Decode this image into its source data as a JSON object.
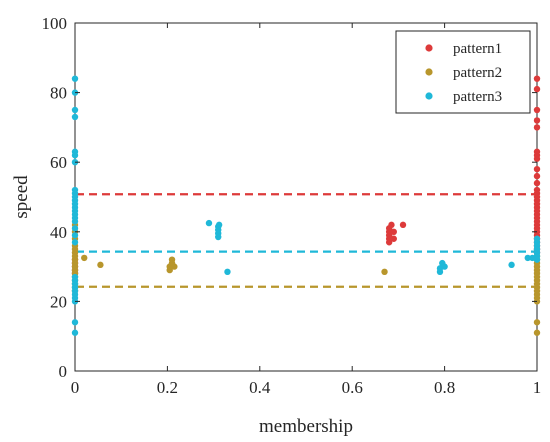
{
  "chart_data": {
    "type": "scatter",
    "xlabel": "membership",
    "ylabel": "speed",
    "xlim": [
      0,
      1
    ],
    "ylim": [
      0,
      100
    ],
    "xticks": [
      0,
      0.2,
      0.4,
      0.6,
      0.8,
      1
    ],
    "xtick_labels": [
      "0",
      "0.2",
      "0.4",
      "0.6",
      "0.8",
      "1"
    ],
    "yticks": [
      0,
      20,
      40,
      60,
      80,
      100
    ],
    "ytick_labels": [
      "0",
      "20",
      "40",
      "60",
      "80",
      "100"
    ],
    "grid": false,
    "legend_position": "top-right",
    "series": [
      {
        "name": "pattern1",
        "color": "#dd3a3a",
        "threshold": 50.8,
        "points": [
          [
            0,
            29
          ],
          [
            0,
            30
          ],
          [
            0,
            31
          ],
          [
            0,
            32
          ],
          [
            0,
            28
          ],
          [
            0.68,
            37
          ],
          [
            0.68,
            38
          ],
          [
            0.68,
            39
          ],
          [
            0.68,
            40
          ],
          [
            0.68,
            41
          ],
          [
            0.685,
            42
          ],
          [
            0.69,
            38
          ],
          [
            0.69,
            40
          ],
          [
            0.71,
            42
          ],
          [
            1,
            84
          ],
          [
            1,
            81
          ],
          [
            1,
            75
          ],
          [
            1,
            72
          ],
          [
            1,
            70
          ],
          [
            1,
            63
          ],
          [
            1,
            62
          ],
          [
            1,
            61
          ],
          [
            1,
            58
          ],
          [
            1,
            56
          ],
          [
            1,
            54
          ],
          [
            1,
            52
          ],
          [
            1,
            51
          ],
          [
            1,
            50
          ],
          [
            1,
            49
          ],
          [
            1,
            48
          ],
          [
            1,
            47
          ],
          [
            1,
            46
          ],
          [
            1,
            45
          ],
          [
            1,
            44
          ],
          [
            1,
            43
          ],
          [
            1,
            42
          ],
          [
            1,
            41
          ],
          [
            1,
            40
          ],
          [
            1,
            39
          ],
          [
            1,
            38
          ],
          [
            1,
            37
          ],
          [
            1,
            36
          ],
          [
            1,
            35
          ],
          [
            1,
            34
          ]
        ]
      },
      {
        "name": "pattern2",
        "color": "#b8962c",
        "threshold": 24.2,
        "points": [
          [
            0,
            42
          ],
          [
            0,
            40
          ],
          [
            0,
            38
          ],
          [
            0,
            36
          ],
          [
            0,
            35
          ],
          [
            0,
            34
          ],
          [
            0,
            33
          ],
          [
            0,
            32
          ],
          [
            0,
            31
          ],
          [
            0,
            30
          ],
          [
            0,
            29
          ],
          [
            0,
            28
          ],
          [
            0,
            27
          ],
          [
            0,
            26
          ],
          [
            0,
            25
          ],
          [
            0,
            24
          ],
          [
            0,
            23
          ],
          [
            0.02,
            32.5
          ],
          [
            0.055,
            30.5
          ],
          [
            0.205,
            29
          ],
          [
            0.205,
            30
          ],
          [
            0.21,
            31
          ],
          [
            0.21,
            32
          ],
          [
            0.215,
            30
          ],
          [
            0.67,
            28.5
          ],
          [
            1,
            33
          ],
          [
            1,
            32
          ],
          [
            1,
            31
          ],
          [
            1,
            30
          ],
          [
            1,
            29
          ],
          [
            1,
            28
          ],
          [
            1,
            27
          ],
          [
            1,
            26
          ],
          [
            1,
            25
          ],
          [
            1,
            24
          ],
          [
            1,
            23
          ],
          [
            1,
            22
          ],
          [
            1,
            21
          ],
          [
            1,
            20
          ],
          [
            1,
            14
          ],
          [
            1,
            11
          ]
        ]
      },
      {
        "name": "pattern3",
        "color": "#1fb8d8",
        "threshold": 34.3,
        "points": [
          [
            0,
            84
          ],
          [
            0,
            80
          ],
          [
            0,
            75
          ],
          [
            0,
            73
          ],
          [
            0,
            63
          ],
          [
            0,
            62
          ],
          [
            0,
            60
          ],
          [
            0,
            52
          ],
          [
            0,
            51
          ],
          [
            0,
            50
          ],
          [
            0,
            49
          ],
          [
            0,
            48
          ],
          [
            0,
            47
          ],
          [
            0,
            46
          ],
          [
            0,
            45
          ],
          [
            0,
            44
          ],
          [
            0,
            43
          ],
          [
            0,
            41
          ],
          [
            0,
            39
          ],
          [
            0,
            37
          ],
          [
            0,
            27
          ],
          [
            0,
            26
          ],
          [
            0,
            25
          ],
          [
            0,
            24
          ],
          [
            0,
            23
          ],
          [
            0,
            22
          ],
          [
            0,
            21
          ],
          [
            0,
            20
          ],
          [
            0,
            14
          ],
          [
            0,
            11
          ],
          [
            0.29,
            42.5
          ],
          [
            0.31,
            38.5
          ],
          [
            0.31,
            39.5
          ],
          [
            0.31,
            40.5
          ],
          [
            0.31,
            41.5
          ],
          [
            0.312,
            42
          ],
          [
            0.33,
            28.5
          ],
          [
            0.79,
            28.5
          ],
          [
            0.79,
            29.5
          ],
          [
            0.795,
            31
          ],
          [
            0.8,
            30
          ],
          [
            0.945,
            30.5
          ],
          [
            0.98,
            32.5
          ],
          [
            0.99,
            32.5
          ],
          [
            1,
            38
          ],
          [
            1,
            37
          ],
          [
            1,
            36
          ],
          [
            1,
            35
          ],
          [
            1,
            34
          ],
          [
            1,
            33
          ],
          [
            1,
            32
          ]
        ]
      }
    ]
  }
}
